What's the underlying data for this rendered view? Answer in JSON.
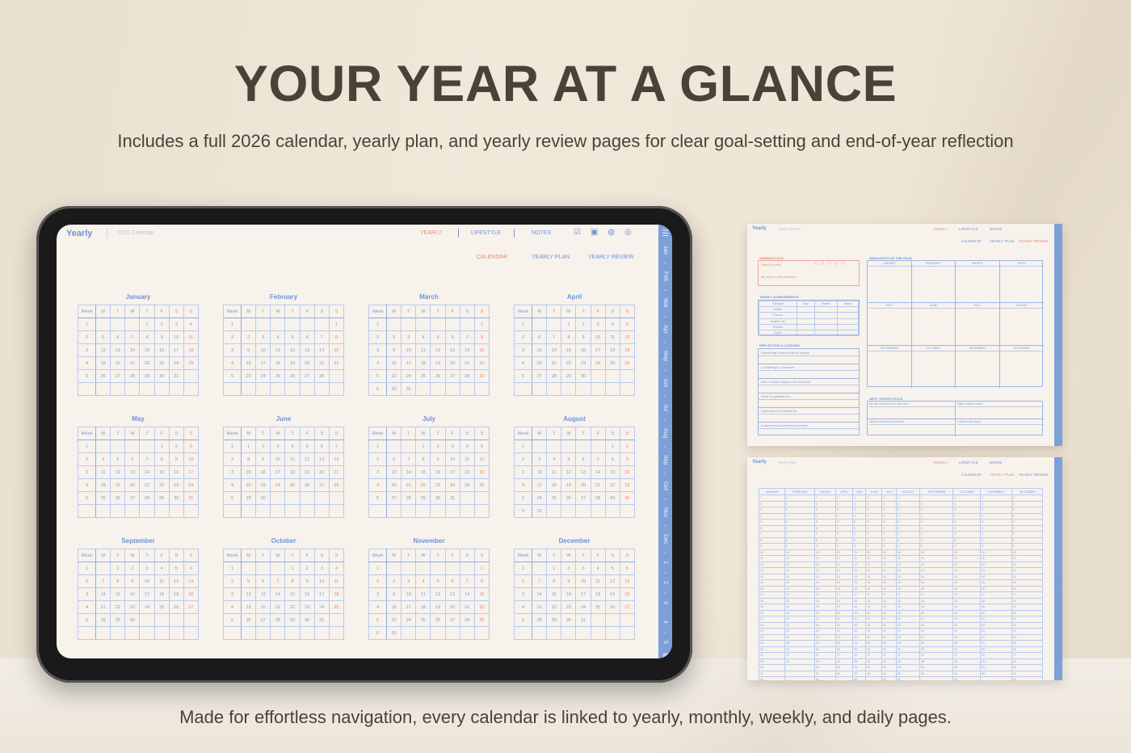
{
  "headline": {
    "title": "YOUR YEAR AT A GLANCE",
    "subtitle": "Includes a full 2026 calendar, yearly plan, and yearly review pages for clear goal-setting and end-of-year reflection",
    "footer": "Made for effortless navigation, every calendar is linked to yearly, monthly, weekly, and daily pages."
  },
  "colors": {
    "accent_blue": "#6f93d6",
    "accent_red": "#e58a7a",
    "page": "#f7f2ec",
    "tab_strip": "#7ea0d8",
    "title": "#4a4237"
  },
  "app": {
    "logo": "Yearly",
    "breadcrumb": "2026 Calendar",
    "nav": [
      "YEARLY",
      "LIFESTYLE",
      "NOTES"
    ],
    "icons": [
      "checklist-icon",
      "bag-icon",
      "globe-icon",
      "settings-icon"
    ],
    "subnav": [
      "CALENDAR",
      "YEARLY PLAN",
      "YEARLY REVIEW"
    ],
    "active_subnav": "CALENDAR",
    "side_tabs": [
      "Jan",
      "Feb",
      "Mar",
      "Apr",
      "May",
      "Jun",
      "Jul",
      "Aug",
      "Sep",
      "Oct",
      "Nov",
      "Dec",
      "1",
      "2",
      "3",
      "4",
      "5"
    ]
  },
  "calendar": {
    "headers": [
      "Week",
      "M",
      "T",
      "W",
      "T",
      "F",
      "S",
      "S"
    ],
    "months": [
      {
        "name": "January",
        "weeks": [
          [
            1,
            null,
            null,
            null,
            1,
            2,
            3,
            4
          ],
          [
            2,
            5,
            6,
            7,
            8,
            9,
            10,
            11
          ],
          [
            3,
            12,
            13,
            14,
            15,
            16,
            17,
            18
          ],
          [
            4,
            19,
            20,
            21,
            22,
            23,
            24,
            25
          ],
          [
            5,
            26,
            27,
            28,
            29,
            30,
            31,
            null
          ]
        ]
      },
      {
        "name": "February",
        "weeks": [
          [
            1,
            null,
            null,
            null,
            null,
            null,
            null,
            1
          ],
          [
            2,
            2,
            3,
            4,
            5,
            6,
            7,
            8
          ],
          [
            3,
            9,
            10,
            11,
            12,
            13,
            14,
            15
          ],
          [
            4,
            16,
            17,
            18,
            19,
            20,
            21,
            22
          ],
          [
            5,
            23,
            24,
            25,
            26,
            27,
            28,
            null
          ]
        ]
      },
      {
        "name": "March",
        "weeks": [
          [
            1,
            null,
            null,
            null,
            null,
            null,
            null,
            1
          ],
          [
            2,
            2,
            3,
            4,
            5,
            6,
            7,
            8
          ],
          [
            3,
            9,
            10,
            11,
            12,
            13,
            14,
            15
          ],
          [
            4,
            16,
            17,
            18,
            19,
            20,
            21,
            22
          ],
          [
            5,
            23,
            24,
            25,
            26,
            27,
            28,
            29
          ],
          [
            6,
            30,
            31,
            null,
            null,
            null,
            null,
            null
          ]
        ]
      },
      {
        "name": "April",
        "weeks": [
          [
            1,
            null,
            null,
            1,
            2,
            3,
            4,
            5
          ],
          [
            2,
            6,
            7,
            8,
            9,
            10,
            11,
            12
          ],
          [
            3,
            13,
            14,
            15,
            16,
            17,
            18,
            19
          ],
          [
            4,
            20,
            21,
            22,
            23,
            24,
            25,
            26
          ],
          [
            5,
            27,
            28,
            29,
            30,
            null,
            null,
            null
          ]
        ]
      },
      {
        "name": "May",
        "weeks": [
          [
            1,
            null,
            null,
            null,
            null,
            1,
            2,
            3
          ],
          [
            2,
            4,
            5,
            6,
            7,
            8,
            9,
            10
          ],
          [
            3,
            11,
            12,
            13,
            14,
            15,
            16,
            17
          ],
          [
            4,
            18,
            19,
            20,
            21,
            22,
            23,
            24
          ],
          [
            5,
            25,
            26,
            27,
            28,
            29,
            30,
            31
          ]
        ]
      },
      {
        "name": "June",
        "weeks": [
          [
            1,
            1,
            2,
            3,
            4,
            5,
            6,
            7
          ],
          [
            2,
            8,
            9,
            10,
            11,
            12,
            13,
            14
          ],
          [
            3,
            15,
            16,
            17,
            18,
            19,
            20,
            21
          ],
          [
            4,
            22,
            23,
            24,
            25,
            26,
            27,
            28
          ],
          [
            5,
            29,
            30,
            null,
            null,
            null,
            null,
            null
          ]
        ]
      },
      {
        "name": "July",
        "weeks": [
          [
            1,
            null,
            null,
            1,
            2,
            3,
            4,
            5
          ],
          [
            2,
            6,
            7,
            8,
            9,
            10,
            11,
            12
          ],
          [
            3,
            13,
            14,
            15,
            16,
            17,
            18,
            19
          ],
          [
            4,
            20,
            21,
            22,
            23,
            24,
            25,
            26
          ],
          [
            5,
            27,
            28,
            29,
            30,
            31,
            null,
            null
          ]
        ]
      },
      {
        "name": "August",
        "weeks": [
          [
            1,
            null,
            null,
            null,
            null,
            null,
            1,
            2
          ],
          [
            2,
            3,
            4,
            5,
            6,
            7,
            8,
            9
          ],
          [
            3,
            10,
            11,
            12,
            13,
            14,
            15,
            16
          ],
          [
            4,
            17,
            18,
            19,
            20,
            21,
            22,
            23
          ],
          [
            5,
            24,
            25,
            26,
            27,
            28,
            29,
            30
          ],
          [
            6,
            31,
            null,
            null,
            null,
            null,
            null,
            null
          ]
        ]
      },
      {
        "name": "September",
        "weeks": [
          [
            1,
            null,
            1,
            2,
            3,
            4,
            5,
            6
          ],
          [
            2,
            7,
            8,
            9,
            10,
            11,
            12,
            13
          ],
          [
            3,
            14,
            15,
            16,
            17,
            18,
            19,
            20
          ],
          [
            4,
            21,
            22,
            23,
            24,
            25,
            26,
            27
          ],
          [
            5,
            28,
            29,
            30,
            null,
            null,
            null,
            null
          ]
        ]
      },
      {
        "name": "October",
        "weeks": [
          [
            1,
            null,
            null,
            null,
            1,
            2,
            3,
            4
          ],
          [
            2,
            5,
            6,
            7,
            8,
            9,
            10,
            11
          ],
          [
            3,
            12,
            13,
            14,
            15,
            16,
            17,
            18
          ],
          [
            4,
            19,
            20,
            21,
            22,
            23,
            24,
            25
          ],
          [
            5,
            26,
            27,
            28,
            29,
            30,
            31,
            null
          ]
        ]
      },
      {
        "name": "November",
        "weeks": [
          [
            1,
            null,
            null,
            null,
            null,
            null,
            null,
            1
          ],
          [
            2,
            2,
            3,
            4,
            5,
            6,
            7,
            8
          ],
          [
            3,
            9,
            10,
            11,
            12,
            13,
            14,
            15
          ],
          [
            4,
            16,
            17,
            18,
            19,
            20,
            21,
            22
          ],
          [
            5,
            23,
            24,
            25,
            26,
            27,
            28,
            29
          ],
          [
            6,
            30,
            null,
            null,
            null,
            null,
            null,
            null
          ]
        ]
      },
      {
        "name": "December",
        "weeks": [
          [
            1,
            null,
            1,
            2,
            3,
            4,
            5,
            6
          ],
          [
            2,
            7,
            8,
            9,
            10,
            11,
            12,
            13
          ],
          [
            3,
            14,
            15,
            16,
            17,
            18,
            19,
            20
          ],
          [
            4,
            21,
            22,
            23,
            24,
            25,
            26,
            27
          ],
          [
            5,
            28,
            29,
            30,
            31,
            null,
            null,
            null
          ]
        ]
      }
    ]
  },
  "review_page": {
    "breadcrumb": "Yearly Review",
    "active_subnav": "YEARLY REVIEW",
    "summary": {
      "title": "SUMMARY BOX",
      "rate": "Rate this year",
      "sentence": "My year in one sentence",
      "stars": 5
    },
    "achievements": {
      "title": "YEARLY ACHIEVEMENTS",
      "headers": [
        "Category",
        "Goal",
        "Result",
        "Notes"
      ],
      "rows": [
        "Health",
        "Finance",
        "Bucket List",
        "Routine",
        "Mood"
      ]
    },
    "reflection": {
      "title": "REFLECTION & LESSONS",
      "prompts": [
        "Something I learned about myself",
        "A challenge I overcame",
        "Who or what inspired me the most",
        "What I'm grateful for",
        "Someone I'm thankful for",
        "A moment that warmed my heart"
      ]
    },
    "highlights": {
      "title": "HIGHLIGHTS OF THE YEAR",
      "months": [
        "JANUARY",
        "FEBRUARY",
        "MARCH",
        "APRIL",
        "MAY",
        "JUNE",
        "JULY",
        "AUGUST",
        "SEPTEMBER",
        "OCTOBER",
        "NOVEMBER",
        "DECEMBER"
      ]
    },
    "focus": {
      "title": "NEXT YEAR'S FOCUS",
      "prompts": [
        "My top 3 priorities for next year",
        "Habit I want to build",
        "Word or theme for next year",
        "I want to feel more"
      ]
    }
  },
  "plan_page": {
    "breadcrumb": "Yearly Plan",
    "active_subnav": "YEARLY PLAN",
    "months": [
      "JANUARY",
      "FEBRUARY",
      "MARCH",
      "APRIL",
      "MAY",
      "JUNE",
      "JULY",
      "AUGUST",
      "SEPTEMBER",
      "OCTOBER",
      "NOVEMBER",
      "DECEMBER"
    ],
    "days_in_month": [
      31,
      28,
      31,
      30,
      31,
      30,
      31,
      31,
      30,
      31,
      30,
      31
    ]
  }
}
